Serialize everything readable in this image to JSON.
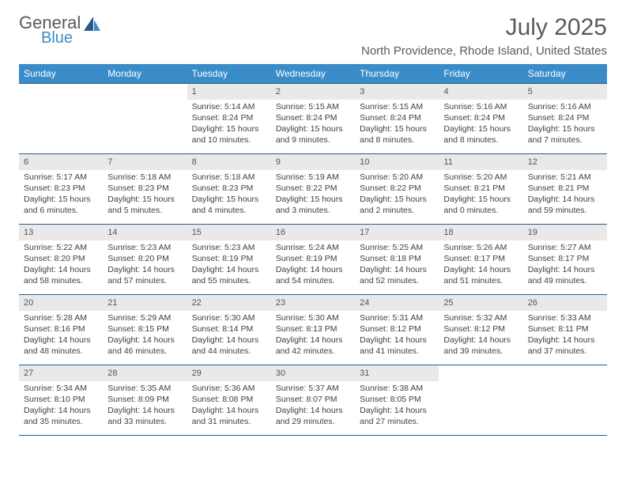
{
  "logo": {
    "text_top": "General",
    "text_bottom": "Blue"
  },
  "title": "July 2025",
  "location": "North Providence, Rhode Island, United States",
  "colors": {
    "header_bg": "#3a8cc9",
    "header_text": "#ffffff",
    "daynum_bg": "#e9e9e9",
    "border": "#2a5b88",
    "body_text": "#404040",
    "title_text": "#5a5a5a"
  },
  "days_of_week": [
    "Sunday",
    "Monday",
    "Tuesday",
    "Wednesday",
    "Thursday",
    "Friday",
    "Saturday"
  ],
  "weeks": [
    [
      {
        "n": "",
        "sr": "",
        "ss": "",
        "dl": ""
      },
      {
        "n": "",
        "sr": "",
        "ss": "",
        "dl": ""
      },
      {
        "n": "1",
        "sr": "Sunrise: 5:14 AM",
        "ss": "Sunset: 8:24 PM",
        "dl": "Daylight: 15 hours and 10 minutes."
      },
      {
        "n": "2",
        "sr": "Sunrise: 5:15 AM",
        "ss": "Sunset: 8:24 PM",
        "dl": "Daylight: 15 hours and 9 minutes."
      },
      {
        "n": "3",
        "sr": "Sunrise: 5:15 AM",
        "ss": "Sunset: 8:24 PM",
        "dl": "Daylight: 15 hours and 8 minutes."
      },
      {
        "n": "4",
        "sr": "Sunrise: 5:16 AM",
        "ss": "Sunset: 8:24 PM",
        "dl": "Daylight: 15 hours and 8 minutes."
      },
      {
        "n": "5",
        "sr": "Sunrise: 5:16 AM",
        "ss": "Sunset: 8:24 PM",
        "dl": "Daylight: 15 hours and 7 minutes."
      }
    ],
    [
      {
        "n": "6",
        "sr": "Sunrise: 5:17 AM",
        "ss": "Sunset: 8:23 PM",
        "dl": "Daylight: 15 hours and 6 minutes."
      },
      {
        "n": "7",
        "sr": "Sunrise: 5:18 AM",
        "ss": "Sunset: 8:23 PM",
        "dl": "Daylight: 15 hours and 5 minutes."
      },
      {
        "n": "8",
        "sr": "Sunrise: 5:18 AM",
        "ss": "Sunset: 8:23 PM",
        "dl": "Daylight: 15 hours and 4 minutes."
      },
      {
        "n": "9",
        "sr": "Sunrise: 5:19 AM",
        "ss": "Sunset: 8:22 PM",
        "dl": "Daylight: 15 hours and 3 minutes."
      },
      {
        "n": "10",
        "sr": "Sunrise: 5:20 AM",
        "ss": "Sunset: 8:22 PM",
        "dl": "Daylight: 15 hours and 2 minutes."
      },
      {
        "n": "11",
        "sr": "Sunrise: 5:20 AM",
        "ss": "Sunset: 8:21 PM",
        "dl": "Daylight: 15 hours and 0 minutes."
      },
      {
        "n": "12",
        "sr": "Sunrise: 5:21 AM",
        "ss": "Sunset: 8:21 PM",
        "dl": "Daylight: 14 hours and 59 minutes."
      }
    ],
    [
      {
        "n": "13",
        "sr": "Sunrise: 5:22 AM",
        "ss": "Sunset: 8:20 PM",
        "dl": "Daylight: 14 hours and 58 minutes."
      },
      {
        "n": "14",
        "sr": "Sunrise: 5:23 AM",
        "ss": "Sunset: 8:20 PM",
        "dl": "Daylight: 14 hours and 57 minutes."
      },
      {
        "n": "15",
        "sr": "Sunrise: 5:23 AM",
        "ss": "Sunset: 8:19 PM",
        "dl": "Daylight: 14 hours and 55 minutes."
      },
      {
        "n": "16",
        "sr": "Sunrise: 5:24 AM",
        "ss": "Sunset: 8:19 PM",
        "dl": "Daylight: 14 hours and 54 minutes."
      },
      {
        "n": "17",
        "sr": "Sunrise: 5:25 AM",
        "ss": "Sunset: 8:18 PM",
        "dl": "Daylight: 14 hours and 52 minutes."
      },
      {
        "n": "18",
        "sr": "Sunrise: 5:26 AM",
        "ss": "Sunset: 8:17 PM",
        "dl": "Daylight: 14 hours and 51 minutes."
      },
      {
        "n": "19",
        "sr": "Sunrise: 5:27 AM",
        "ss": "Sunset: 8:17 PM",
        "dl": "Daylight: 14 hours and 49 minutes."
      }
    ],
    [
      {
        "n": "20",
        "sr": "Sunrise: 5:28 AM",
        "ss": "Sunset: 8:16 PM",
        "dl": "Daylight: 14 hours and 48 minutes."
      },
      {
        "n": "21",
        "sr": "Sunrise: 5:29 AM",
        "ss": "Sunset: 8:15 PM",
        "dl": "Daylight: 14 hours and 46 minutes."
      },
      {
        "n": "22",
        "sr": "Sunrise: 5:30 AM",
        "ss": "Sunset: 8:14 PM",
        "dl": "Daylight: 14 hours and 44 minutes."
      },
      {
        "n": "23",
        "sr": "Sunrise: 5:30 AM",
        "ss": "Sunset: 8:13 PM",
        "dl": "Daylight: 14 hours and 42 minutes."
      },
      {
        "n": "24",
        "sr": "Sunrise: 5:31 AM",
        "ss": "Sunset: 8:12 PM",
        "dl": "Daylight: 14 hours and 41 minutes."
      },
      {
        "n": "25",
        "sr": "Sunrise: 5:32 AM",
        "ss": "Sunset: 8:12 PM",
        "dl": "Daylight: 14 hours and 39 minutes."
      },
      {
        "n": "26",
        "sr": "Sunrise: 5:33 AM",
        "ss": "Sunset: 8:11 PM",
        "dl": "Daylight: 14 hours and 37 minutes."
      }
    ],
    [
      {
        "n": "27",
        "sr": "Sunrise: 5:34 AM",
        "ss": "Sunset: 8:10 PM",
        "dl": "Daylight: 14 hours and 35 minutes."
      },
      {
        "n": "28",
        "sr": "Sunrise: 5:35 AM",
        "ss": "Sunset: 8:09 PM",
        "dl": "Daylight: 14 hours and 33 minutes."
      },
      {
        "n": "29",
        "sr": "Sunrise: 5:36 AM",
        "ss": "Sunset: 8:08 PM",
        "dl": "Daylight: 14 hours and 31 minutes."
      },
      {
        "n": "30",
        "sr": "Sunrise: 5:37 AM",
        "ss": "Sunset: 8:07 PM",
        "dl": "Daylight: 14 hours and 29 minutes."
      },
      {
        "n": "31",
        "sr": "Sunrise: 5:38 AM",
        "ss": "Sunset: 8:05 PM",
        "dl": "Daylight: 14 hours and 27 minutes."
      },
      {
        "n": "",
        "sr": "",
        "ss": "",
        "dl": ""
      },
      {
        "n": "",
        "sr": "",
        "ss": "",
        "dl": ""
      }
    ]
  ]
}
